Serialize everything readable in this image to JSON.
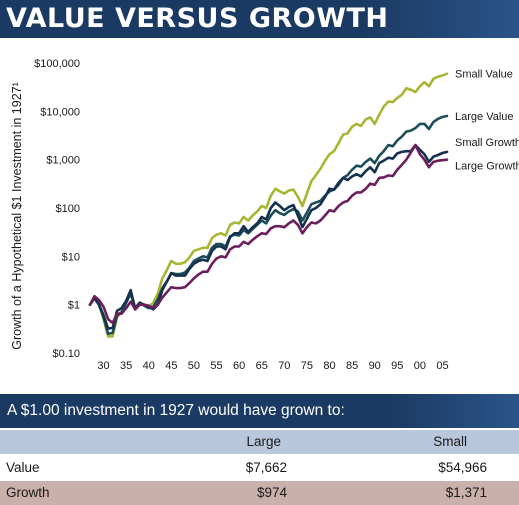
{
  "title": "VALUE VERSUS GROWTH",
  "chart_data": {
    "type": "line",
    "ylabel": "Growth of a Hypothetical $1 Investment in 1927¹",
    "y_scale": "log",
    "ylim": [
      0.1,
      100000
    ],
    "xlim": [
      1927,
      2006
    ],
    "y_ticks": [
      0.1,
      1,
      10,
      100,
      1000,
      10000,
      100000
    ],
    "y_tick_labels": [
      "$0.10",
      "$1",
      "$10",
      "$100",
      "$1,000",
      "$10,000",
      "$100,000"
    ],
    "x_ticks": [
      1930,
      1935,
      1940,
      1945,
      1950,
      1955,
      1960,
      1965,
      1970,
      1975,
      1980,
      1985,
      1990,
      1995,
      2000,
      2005
    ],
    "x_tick_labels": [
      "30",
      "35",
      "40",
      "45",
      "50",
      "55",
      "60",
      "65",
      "70",
      "75",
      "80",
      "85",
      "90",
      "95",
      "00",
      "05"
    ],
    "grid": false,
    "legend": "labels at line ends, right",
    "x": [
      1927,
      1928,
      1929,
      1930,
      1931,
      1932,
      1933,
      1934,
      1935,
      1936,
      1937,
      1938,
      1939,
      1940,
      1941,
      1942,
      1943,
      1944,
      1945,
      1946,
      1947,
      1948,
      1949,
      1950,
      1951,
      1952,
      1953,
      1954,
      1955,
      1956,
      1957,
      1958,
      1959,
      1960,
      1961,
      1962,
      1963,
      1964,
      1965,
      1966,
      1967,
      1968,
      1969,
      1970,
      1971,
      1972,
      1973,
      1974,
      1975,
      1976,
      1977,
      1978,
      1979,
      1980,
      1981,
      1982,
      1983,
      1984,
      1985,
      1986,
      1987,
      1988,
      1989,
      1990,
      1991,
      1992,
      1993,
      1994,
      1995,
      1996,
      1997,
      1998,
      1999,
      2000,
      2001,
      2002,
      2003,
      2004,
      2005,
      2006
    ],
    "series": [
      {
        "name": "Small Value",
        "color": "#a8b634",
        "values": [
          1,
          1.5,
          1.0,
          0.5,
          0.22,
          0.22,
          0.55,
          0.7,
          1.1,
          1.9,
          0.85,
          1.1,
          1.0,
          0.9,
          1.1,
          1.7,
          3.5,
          5.2,
          8,
          7,
          7,
          7.5,
          9.5,
          13,
          14,
          15,
          15,
          24,
          28,
          30,
          27,
          45,
          50,
          48,
          65,
          55,
          70,
          85,
          110,
          100,
          180,
          250,
          220,
          200,
          230,
          240,
          170,
          110,
          200,
          360,
          480,
          650,
          950,
          1300,
          1500,
          2200,
          3300,
          3500,
          4800,
          5500,
          5000,
          6800,
          7500,
          5500,
          8500,
          12500,
          16000,
          15500,
          19000,
          22000,
          30000,
          28000,
          25000,
          33000,
          40000,
          33000,
          47000,
          52000,
          55000,
          60000
        ]
      },
      {
        "name": "Large Value",
        "color": "#1c4e5a",
        "values": [
          1,
          1.4,
          1.0,
          0.55,
          0.25,
          0.26,
          0.6,
          0.7,
          1.1,
          1.7,
          0.85,
          1.1,
          0.95,
          0.85,
          0.9,
          1.3,
          2.2,
          3.0,
          4.5,
          4.3,
          4.3,
          4.6,
          5.8,
          8,
          9,
          10,
          9.5,
          15,
          18,
          18,
          16,
          26,
          28,
          27,
          35,
          30,
          37,
          45,
          55,
          48,
          70,
          90,
          78,
          72,
          85,
          95,
          85,
          55,
          80,
          120,
          130,
          140,
          180,
          220,
          240,
          300,
          420,
          480,
          620,
          750,
          720,
          900,
          1050,
          850,
          1200,
          1500,
          2000,
          1900,
          2500,
          3000,
          3800,
          4000,
          4500,
          5500,
          5500,
          4300,
          6000,
          7000,
          7662,
          8000
        ]
      },
      {
        "name": "Small Growth",
        "color": "#16314f",
        "values": [
          1,
          1.35,
          1.0,
          0.6,
          0.32,
          0.33,
          0.75,
          0.85,
          1.2,
          2.0,
          0.8,
          1.1,
          1.0,
          0.9,
          0.8,
          1.0,
          2.0,
          3.0,
          4.5,
          4.0,
          4.0,
          4.0,
          5.5,
          7,
          8,
          8.5,
          8,
          13,
          16,
          16,
          14,
          25,
          30,
          30,
          42,
          32,
          40,
          48,
          65,
          58,
          100,
          130,
          110,
          90,
          105,
          115,
          70,
          40,
          60,
          90,
          100,
          120,
          170,
          250,
          240,
          330,
          420,
          380,
          450,
          500,
          450,
          580,
          700,
          550,
          850,
          950,
          1100,
          1050,
          1350,
          1450,
          1500,
          1500,
          2000,
          1600,
          1300,
          900,
          1150,
          1250,
          1371,
          1450
        ]
      },
      {
        "name": "Large Growth",
        "color": "#6b1f5c",
        "values": [
          1,
          1.5,
          1.25,
          0.9,
          0.5,
          0.42,
          0.65,
          0.65,
          0.85,
          1.15,
          0.8,
          1.0,
          1.0,
          0.95,
          0.85,
          1.0,
          1.4,
          1.8,
          2.3,
          2.2,
          2.2,
          2.3,
          2.8,
          3.5,
          4.2,
          4.8,
          4.8,
          7,
          9,
          10,
          9.5,
          14,
          16,
          16,
          20,
          18,
          22,
          26,
          30,
          29,
          38,
          42,
          42,
          40,
          48,
          55,
          45,
          30,
          40,
          50,
          48,
          55,
          70,
          90,
          85,
          110,
          130,
          140,
          180,
          210,
          210,
          250,
          320,
          300,
          420,
          430,
          470,
          460,
          620,
          780,
          1000,
          1400,
          2000,
          1300,
          1000,
          700,
          900,
          950,
          974,
          1000
        ]
      }
    ]
  },
  "table": {
    "caption": "A $1.00 investment in 1927 would have grown to:",
    "columns": [
      "",
      "Large",
      "Small"
    ],
    "rows": [
      {
        "label": "Value",
        "large": "$7,662",
        "small": "$54,966"
      },
      {
        "label": "Growth",
        "large": "$974",
        "small": "$1,371"
      }
    ]
  }
}
